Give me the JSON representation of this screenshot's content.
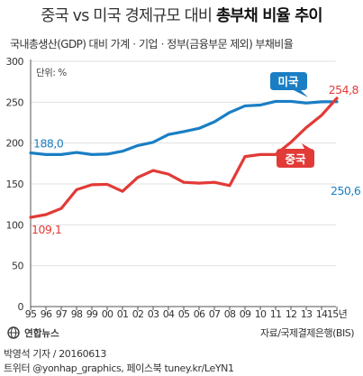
{
  "title_regular": "중국 vs 미국 경제규모 대비",
  "title_bold": "총부채 비율 추이",
  "subtitle": "국내총생산(GDP) 대비 가계ㆍ기업ㆍ정부(금융부문 제외) 부채비율",
  "unit_label": "단위: %",
  "source": "자료/국제결제은행(BIS)",
  "logo_text": "연합뉴스",
  "credit_line1": "박영석 기자 / 20160613",
  "credit_line2": "트위터 @yonhap_graphics, 페이스북 tuney.kr/LeYN1",
  "colors": {
    "china": "#e23a36",
    "usa": "#1a7ec4",
    "axis": "#555555",
    "grid": "#e0e0e0"
  },
  "chart_data": {
    "type": "line",
    "x": [
      "95",
      "96",
      "97",
      "98",
      "99",
      "00",
      "01",
      "02",
      "03",
      "04",
      "05",
      "06",
      "07",
      "08",
      "09",
      "10",
      "11",
      "12",
      "13",
      "14",
      "15년"
    ],
    "ylim": [
      0,
      300
    ],
    "yticks": [
      0,
      50,
      100,
      150,
      200,
      250,
      300
    ],
    "unit": "단위: %",
    "series": [
      {
        "name": "미국",
        "color": "#1a7ec4",
        "values": [
          188.0,
          186.0,
          186.0,
          188.5,
          186.0,
          186.5,
          190.0,
          197.0,
          201.0,
          210.5,
          214.0,
          218.0,
          226.0,
          237.5,
          245.5,
          246.5,
          251.0,
          251.0,
          249.0,
          250.5,
          250.6
        ],
        "labels": [
          {
            "index": 0,
            "text": "188,0"
          },
          {
            "index": 20,
            "text": "250,6"
          }
        ]
      },
      {
        "name": "중국",
        "color": "#e23a36",
        "values": [
          109.1,
          112.5,
          120.0,
          143.0,
          149.0,
          149.5,
          141.0,
          158.0,
          166.5,
          162.0,
          152.0,
          151.0,
          152.0,
          148.0,
          183.5,
          186.0,
          186.0,
          201.0,
          219.0,
          234.0,
          254.8
        ],
        "labels": [
          {
            "index": 0,
            "text": "109,1"
          },
          {
            "index": 20,
            "text": "254,8"
          }
        ]
      }
    ]
  }
}
